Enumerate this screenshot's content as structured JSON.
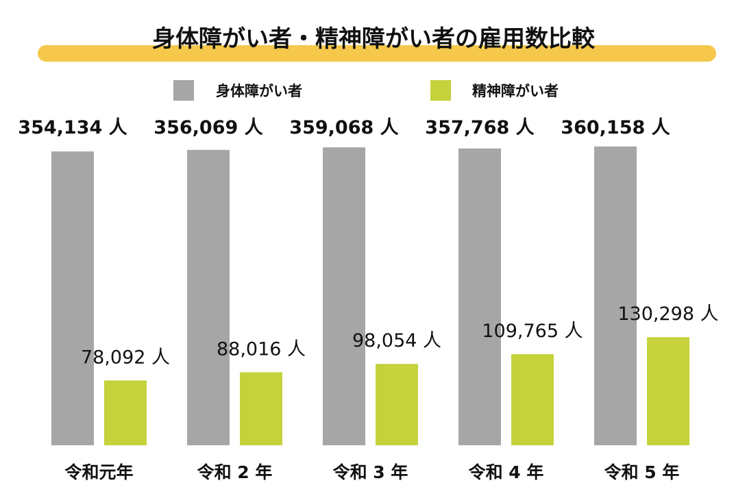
{
  "chart_data": {
    "type": "bar",
    "title": "身体障がい者・精神障がい者の雇用数比較",
    "categories": [
      "令和元年",
      "令和 2 年",
      "令和 3 年",
      "令和 4 年",
      "令和 5 年"
    ],
    "series": [
      {
        "name": "身体障がい者",
        "color": "#a6a6a6",
        "values": [
          354134,
          356069,
          359068,
          357768,
          360158
        ],
        "labels": [
          "354,134 人",
          "356,069 人",
          "359,068 人",
          "357,768 人",
          "360,158 人"
        ]
      },
      {
        "name": "精神障がい者",
        "color": "#c5d23b",
        "values": [
          78092,
          88016,
          98054,
          109765,
          130298
        ],
        "labels": [
          "78,092 人",
          "88,016 人",
          "98,054 人",
          "109,765 人",
          "130,298 人"
        ]
      }
    ],
    "title_bar_color": "#f5c84b",
    "legend_position": "top-center",
    "grid": false
  }
}
